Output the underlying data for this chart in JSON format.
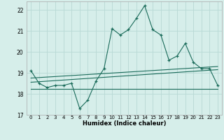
{
  "title": "",
  "xlabel": "Humidex (Indice chaleur)",
  "xlim": [
    -0.5,
    23.5
  ],
  "ylim": [
    17,
    22.4
  ],
  "yticks": [
    17,
    18,
    19,
    20,
    21,
    22
  ],
  "xtick_labels": [
    "0",
    "1",
    "2",
    "3",
    "4",
    "5",
    "6",
    "7",
    "8",
    "9",
    "10",
    "11",
    "12",
    "13",
    "14",
    "15",
    "16",
    "17",
    "18",
    "19",
    "20",
    "21",
    "22",
    "23"
  ],
  "bg_color": "#d6eeea",
  "grid_color": "#b8d8d4",
  "line_color": "#1a6b5a",
  "main_line": {
    "x": [
      0,
      1,
      2,
      3,
      4,
      5,
      6,
      7,
      8,
      9,
      10,
      11,
      12,
      13,
      14,
      15,
      16,
      17,
      18,
      19,
      20,
      21,
      22,
      23
    ],
    "y": [
      19.1,
      18.5,
      18.3,
      18.4,
      18.4,
      18.5,
      17.3,
      17.7,
      18.6,
      19.2,
      21.1,
      20.8,
      21.05,
      21.6,
      22.2,
      21.05,
      20.8,
      19.6,
      19.8,
      20.4,
      19.5,
      19.2,
      19.2,
      18.4
    ]
  },
  "trend_line1": {
    "x": [
      0,
      23
    ],
    "y": [
      18.75,
      19.3
    ]
  },
  "trend_line2": {
    "x": [
      0,
      23
    ],
    "y": [
      18.55,
      19.15
    ]
  },
  "trend_line3": {
    "x": [
      0,
      23
    ],
    "y": [
      18.25,
      18.25
    ]
  }
}
